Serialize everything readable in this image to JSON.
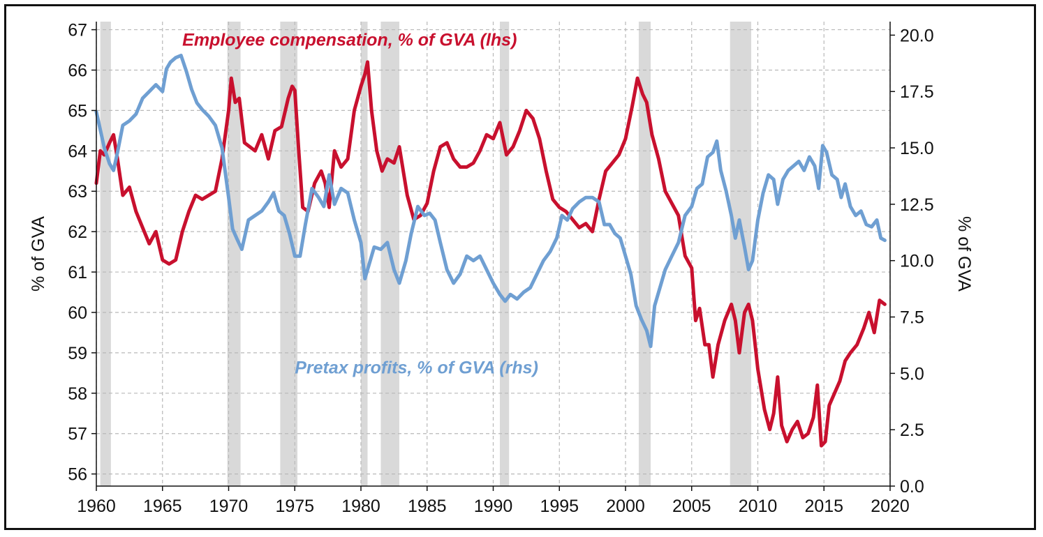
{
  "chart_data": {
    "type": "line",
    "ylabel_left": "% of GVA",
    "ylabel_right": "% of GVA",
    "xlim": [
      1960,
      2020
    ],
    "ylim_left": [
      55.7,
      67.2
    ],
    "ylim_right": [
      0,
      20.6
    ],
    "x_ticks": [
      1960,
      1965,
      1970,
      1975,
      1980,
      1985,
      1990,
      1995,
      2000,
      2005,
      2010,
      2015,
      2020
    ],
    "y_ticks_left": [
      56,
      57,
      58,
      59,
      60,
      61,
      62,
      63,
      64,
      65,
      66,
      67
    ],
    "y_ticks_right": [
      "0.0",
      "2.5",
      "5.0",
      "7.5",
      "10.0",
      "12.5",
      "15.0",
      "17.5",
      "20.0"
    ],
    "y_ticks_right_values": [
      0,
      2.5,
      5,
      7.5,
      10,
      12.5,
      15,
      17.5,
      20
    ],
    "grid": true,
    "recession_shading_color": "#d9d9d9",
    "recessions": [
      [
        1960.3,
        1961.1
      ],
      [
        1969.9,
        1970.9
      ],
      [
        1973.9,
        1975.2
      ],
      [
        1980.0,
        1980.5
      ],
      [
        1981.5,
        1982.9
      ],
      [
        1990.5,
        1991.2
      ],
      [
        2001.0,
        2001.9
      ],
      [
        2007.9,
        2009.5
      ]
    ],
    "series": [
      {
        "name": "Employee compensation, % of GVA (lhs)",
        "axis": "left",
        "color": "#c8102e",
        "label_at": [
          1966.5,
          66.6
        ],
        "points": [
          [
            1960.0,
            63.2
          ],
          [
            1960.3,
            64.0
          ],
          [
            1960.6,
            63.9
          ],
          [
            1961.0,
            64.2
          ],
          [
            1961.3,
            64.4
          ],
          [
            1961.6,
            63.8
          ],
          [
            1962.0,
            62.9
          ],
          [
            1962.5,
            63.1
          ],
          [
            1963.0,
            62.5
          ],
          [
            1963.5,
            62.1
          ],
          [
            1964.0,
            61.7
          ],
          [
            1964.5,
            62.0
          ],
          [
            1965.0,
            61.3
          ],
          [
            1965.5,
            61.2
          ],
          [
            1966.0,
            61.3
          ],
          [
            1966.5,
            62.0
          ],
          [
            1967.0,
            62.5
          ],
          [
            1967.5,
            62.9
          ],
          [
            1968.0,
            62.8
          ],
          [
            1968.5,
            62.9
          ],
          [
            1969.0,
            63.0
          ],
          [
            1969.5,
            63.8
          ],
          [
            1970.0,
            65.0
          ],
          [
            1970.2,
            65.8
          ],
          [
            1970.5,
            65.2
          ],
          [
            1970.8,
            65.3
          ],
          [
            1971.2,
            64.2
          ],
          [
            1971.6,
            64.1
          ],
          [
            1972.0,
            64.0
          ],
          [
            1972.5,
            64.4
          ],
          [
            1973.0,
            63.8
          ],
          [
            1973.5,
            64.5
          ],
          [
            1974.0,
            64.6
          ],
          [
            1974.5,
            65.3
          ],
          [
            1974.8,
            65.6
          ],
          [
            1975.0,
            65.5
          ],
          [
            1975.3,
            64.0
          ],
          [
            1975.6,
            62.6
          ],
          [
            1976.0,
            62.5
          ],
          [
            1976.5,
            63.2
          ],
          [
            1977.0,
            63.5
          ],
          [
            1977.3,
            63.2
          ],
          [
            1977.6,
            62.6
          ],
          [
            1978.0,
            64.0
          ],
          [
            1978.5,
            63.6
          ],
          [
            1979.0,
            63.8
          ],
          [
            1979.5,
            65.0
          ],
          [
            1980.0,
            65.6
          ],
          [
            1980.3,
            65.9
          ],
          [
            1980.5,
            66.2
          ],
          [
            1980.8,
            65.0
          ],
          [
            1981.2,
            64.0
          ],
          [
            1981.6,
            63.5
          ],
          [
            1982.0,
            63.8
          ],
          [
            1982.5,
            63.7
          ],
          [
            1982.9,
            64.1
          ],
          [
            1983.5,
            62.9
          ],
          [
            1984.0,
            62.3
          ],
          [
            1984.5,
            62.4
          ],
          [
            1985.0,
            62.7
          ],
          [
            1985.5,
            63.5
          ],
          [
            1986.0,
            64.1
          ],
          [
            1986.5,
            64.2
          ],
          [
            1987.0,
            63.8
          ],
          [
            1987.5,
            63.6
          ],
          [
            1988.0,
            63.6
          ],
          [
            1988.5,
            63.7
          ],
          [
            1989.0,
            64.0
          ],
          [
            1989.5,
            64.4
          ],
          [
            1990.0,
            64.3
          ],
          [
            1990.5,
            64.7
          ],
          [
            1991.0,
            63.9
          ],
          [
            1991.5,
            64.1
          ],
          [
            1992.0,
            64.5
          ],
          [
            1992.5,
            65.0
          ],
          [
            1993.0,
            64.8
          ],
          [
            1993.5,
            64.3
          ],
          [
            1994.0,
            63.5
          ],
          [
            1994.5,
            62.8
          ],
          [
            1995.0,
            62.6
          ],
          [
            1995.5,
            62.5
          ],
          [
            1996.0,
            62.3
          ],
          [
            1996.5,
            62.1
          ],
          [
            1997.0,
            62.2
          ],
          [
            1997.5,
            62.0
          ],
          [
            1998.0,
            62.8
          ],
          [
            1998.5,
            63.5
          ],
          [
            1999.0,
            63.7
          ],
          [
            1999.5,
            63.9
          ],
          [
            2000.0,
            64.3
          ],
          [
            2000.5,
            65.1
          ],
          [
            2000.9,
            65.8
          ],
          [
            2001.3,
            65.4
          ],
          [
            2001.6,
            65.2
          ],
          [
            2002.0,
            64.4
          ],
          [
            2002.5,
            63.8
          ],
          [
            2003.0,
            63.0
          ],
          [
            2003.5,
            62.7
          ],
          [
            2004.0,
            62.4
          ],
          [
            2004.5,
            61.4
          ],
          [
            2005.0,
            61.1
          ],
          [
            2005.3,
            59.8
          ],
          [
            2005.6,
            60.1
          ],
          [
            2006.0,
            59.2
          ],
          [
            2006.3,
            59.2
          ],
          [
            2006.6,
            58.4
          ],
          [
            2007.0,
            59.2
          ],
          [
            2007.5,
            59.8
          ],
          [
            2008.0,
            60.2
          ],
          [
            2008.3,
            59.8
          ],
          [
            2008.6,
            59.0
          ],
          [
            2009.0,
            60.0
          ],
          [
            2009.3,
            60.2
          ],
          [
            2009.6,
            59.8
          ],
          [
            2010.0,
            58.6
          ],
          [
            2010.5,
            57.6
          ],
          [
            2010.9,
            57.1
          ],
          [
            2011.2,
            57.5
          ],
          [
            2011.5,
            58.4
          ],
          [
            2011.8,
            57.2
          ],
          [
            2012.2,
            56.8
          ],
          [
            2012.6,
            57.1
          ],
          [
            2013.0,
            57.3
          ],
          [
            2013.4,
            56.9
          ],
          [
            2013.8,
            57.0
          ],
          [
            2014.2,
            57.4
          ],
          [
            2014.5,
            58.2
          ],
          [
            2014.8,
            56.7
          ],
          [
            2015.1,
            56.8
          ],
          [
            2015.4,
            57.7
          ],
          [
            2015.8,
            58.0
          ],
          [
            2016.2,
            58.3
          ],
          [
            2016.6,
            58.8
          ],
          [
            2017.0,
            59.0
          ],
          [
            2017.5,
            59.2
          ],
          [
            2018.0,
            59.6
          ],
          [
            2018.4,
            60.0
          ],
          [
            2018.8,
            59.5
          ],
          [
            2019.2,
            60.3
          ],
          [
            2019.6,
            60.2
          ]
        ]
      },
      {
        "name": "Pretax profits, % of GVA (rhs)",
        "axis": "right",
        "color": "#6f9fd2",
        "label_at": [
          1975.0,
          5.0
        ],
        "points": [
          [
            1960.0,
            16.6
          ],
          [
            1960.3,
            15.8
          ],
          [
            1960.6,
            15.0
          ],
          [
            1961.0,
            14.3
          ],
          [
            1961.3,
            14.0
          ],
          [
            1961.6,
            14.8
          ],
          [
            1962.0,
            16.0
          ],
          [
            1962.5,
            16.2
          ],
          [
            1963.0,
            16.5
          ],
          [
            1963.5,
            17.2
          ],
          [
            1964.0,
            17.5
          ],
          [
            1964.5,
            17.8
          ],
          [
            1965.0,
            17.5
          ],
          [
            1965.3,
            18.5
          ],
          [
            1965.6,
            18.8
          ],
          [
            1966.0,
            19.0
          ],
          [
            1966.4,
            19.1
          ],
          [
            1966.8,
            18.4
          ],
          [
            1967.2,
            17.6
          ],
          [
            1967.6,
            17.0
          ],
          [
            1968.0,
            16.7
          ],
          [
            1968.5,
            16.4
          ],
          [
            1969.0,
            16.0
          ],
          [
            1969.5,
            15.0
          ],
          [
            1970.0,
            12.8
          ],
          [
            1970.3,
            11.4
          ],
          [
            1970.6,
            11.0
          ],
          [
            1971.0,
            10.5
          ],
          [
            1971.5,
            11.8
          ],
          [
            1972.0,
            12.0
          ],
          [
            1972.5,
            12.2
          ],
          [
            1973.0,
            12.6
          ],
          [
            1973.4,
            13.0
          ],
          [
            1973.8,
            12.2
          ],
          [
            1974.2,
            12.0
          ],
          [
            1974.6,
            11.2
          ],
          [
            1975.0,
            10.2
          ],
          [
            1975.4,
            10.2
          ],
          [
            1975.8,
            11.6
          ],
          [
            1976.3,
            13.2
          ],
          [
            1976.8,
            12.8
          ],
          [
            1977.2,
            12.4
          ],
          [
            1977.6,
            13.8
          ],
          [
            1978.0,
            12.5
          ],
          [
            1978.5,
            13.2
          ],
          [
            1979.0,
            13.0
          ],
          [
            1979.5,
            11.8
          ],
          [
            1980.0,
            10.8
          ],
          [
            1980.3,
            9.2
          ],
          [
            1980.6,
            9.8
          ],
          [
            1981.0,
            10.6
          ],
          [
            1981.5,
            10.5
          ],
          [
            1982.0,
            10.8
          ],
          [
            1982.5,
            9.6
          ],
          [
            1982.9,
            9.0
          ],
          [
            1983.4,
            10.0
          ],
          [
            1983.8,
            11.2
          ],
          [
            1984.3,
            12.4
          ],
          [
            1984.8,
            12.0
          ],
          [
            1985.2,
            12.1
          ],
          [
            1985.6,
            11.8
          ],
          [
            1986.0,
            10.8
          ],
          [
            1986.5,
            9.6
          ],
          [
            1987.0,
            9.0
          ],
          [
            1987.5,
            9.4
          ],
          [
            1988.0,
            10.2
          ],
          [
            1988.5,
            10.0
          ],
          [
            1989.0,
            10.2
          ],
          [
            1989.5,
            9.6
          ],
          [
            1990.0,
            9.0
          ],
          [
            1990.5,
            8.5
          ],
          [
            1990.9,
            8.2
          ],
          [
            1991.3,
            8.5
          ],
          [
            1991.8,
            8.3
          ],
          [
            1992.3,
            8.6
          ],
          [
            1992.8,
            8.8
          ],
          [
            1993.3,
            9.4
          ],
          [
            1993.8,
            10.0
          ],
          [
            1994.3,
            10.4
          ],
          [
            1994.8,
            11.0
          ],
          [
            1995.2,
            12.0
          ],
          [
            1995.6,
            11.8
          ],
          [
            1996.0,
            12.3
          ],
          [
            1996.5,
            12.6
          ],
          [
            1997.0,
            12.8
          ],
          [
            1997.5,
            12.8
          ],
          [
            1998.0,
            12.6
          ],
          [
            1998.4,
            11.6
          ],
          [
            1998.8,
            11.6
          ],
          [
            1999.2,
            11.2
          ],
          [
            1999.6,
            11.0
          ],
          [
            2000.0,
            10.2
          ],
          [
            2000.4,
            9.4
          ],
          [
            2000.8,
            8.0
          ],
          [
            2001.2,
            7.4
          ],
          [
            2001.6,
            6.9
          ],
          [
            2001.9,
            6.2
          ],
          [
            2002.2,
            8.0
          ],
          [
            2002.6,
            8.8
          ],
          [
            2003.0,
            9.6
          ],
          [
            2003.5,
            10.2
          ],
          [
            2004.0,
            10.8
          ],
          [
            2004.5,
            12.0
          ],
          [
            2005.0,
            12.4
          ],
          [
            2005.4,
            13.2
          ],
          [
            2005.8,
            13.4
          ],
          [
            2006.2,
            14.6
          ],
          [
            2006.6,
            14.8
          ],
          [
            2006.9,
            15.3
          ],
          [
            2007.2,
            14.0
          ],
          [
            2007.6,
            13.1
          ],
          [
            2008.0,
            12.0
          ],
          [
            2008.3,
            11.0
          ],
          [
            2008.6,
            11.8
          ],
          [
            2009.0,
            10.6
          ],
          [
            2009.3,
            9.6
          ],
          [
            2009.6,
            10.0
          ],
          [
            2010.0,
            11.8
          ],
          [
            2010.4,
            13.0
          ],
          [
            2010.8,
            13.8
          ],
          [
            2011.2,
            13.6
          ],
          [
            2011.5,
            12.5
          ],
          [
            2011.9,
            13.6
          ],
          [
            2012.3,
            14.0
          ],
          [
            2012.7,
            14.2
          ],
          [
            2013.1,
            14.4
          ],
          [
            2013.5,
            14.0
          ],
          [
            2013.9,
            14.6
          ],
          [
            2014.3,
            14.2
          ],
          [
            2014.6,
            13.2
          ],
          [
            2014.9,
            15.1
          ],
          [
            2015.2,
            14.8
          ],
          [
            2015.6,
            13.8
          ],
          [
            2016.0,
            13.6
          ],
          [
            2016.3,
            12.8
          ],
          [
            2016.6,
            13.4
          ],
          [
            2017.0,
            12.4
          ],
          [
            2017.4,
            12.0
          ],
          [
            2017.8,
            12.2
          ],
          [
            2018.2,
            11.6
          ],
          [
            2018.6,
            11.5
          ],
          [
            2019.0,
            11.8
          ],
          [
            2019.3,
            11.0
          ],
          [
            2019.6,
            10.9
          ]
        ]
      }
    ]
  }
}
